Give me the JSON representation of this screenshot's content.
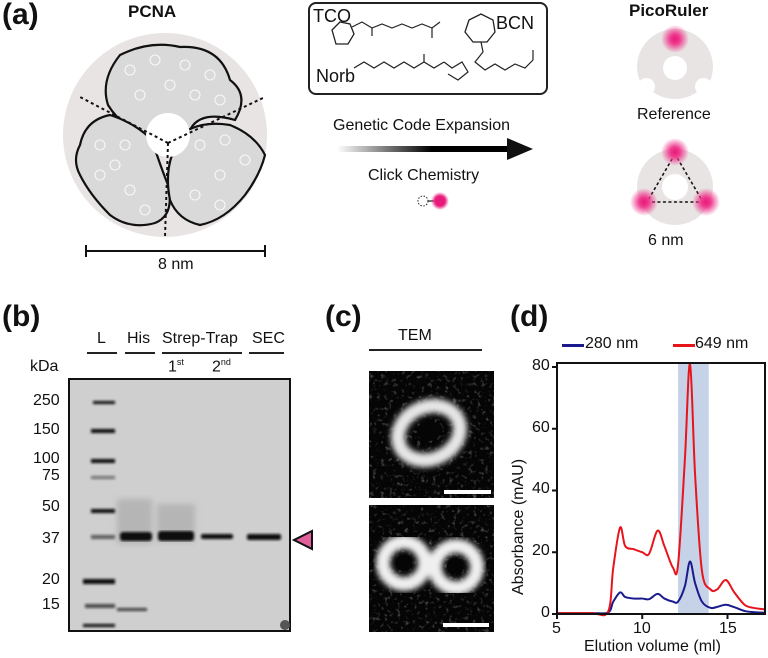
{
  "panel_a": {
    "label": "(a)",
    "pcna": {
      "title": "PCNA",
      "scale_label": "8 nm"
    },
    "chem_box": {
      "molecules": [
        "TCO",
        "BCN",
        "Norb"
      ]
    },
    "arrow_top_label": "Genetic Code Expansion",
    "arrow_bottom_label": "Click Chemistry",
    "picoruler": {
      "title": "PicoRuler",
      "reference_label": "Reference",
      "ruler_label": "6 nm"
    },
    "colors": {
      "ring": "#e8e4e3",
      "fluorophore": "#e8197a"
    }
  },
  "panel_b": {
    "label": "(b)",
    "unit_label": "kDa",
    "lanes": [
      "L",
      "His",
      "Strep-Trap",
      "SEC"
    ],
    "sublanes": [
      {
        "base": "1",
        "sup": "st"
      },
      {
        "base": "2",
        "sup": "nd"
      }
    ],
    "markers": [
      "250",
      "150",
      "100",
      "75",
      "50",
      "37",
      "20",
      "15"
    ],
    "arrow_color": "#e0609a"
  },
  "panel_c": {
    "label": "(c)",
    "title": "TEM"
  },
  "panel_d": {
    "label": "(d)",
    "legend": [
      {
        "name": "280 nm",
        "color": "#1a1a8c"
      },
      {
        "name": "649 nm",
        "color": "#e8141c"
      }
    ],
    "ylabel": "Absorbance (mAU)",
    "xlabel": "Elution volume (ml)",
    "yticks": [
      "0",
      "20",
      "40",
      "60",
      "80"
    ],
    "xticks": [
      "5",
      "10",
      "15"
    ]
  },
  "chart_data": {
    "type": "line",
    "title": "",
    "xlabel": "Elution volume (ml)",
    "ylabel": "Absorbance (mAU)",
    "xlim": [
      5,
      17.2
    ],
    "ylim": [
      0,
      82
    ],
    "grid": false,
    "legend_position": "top",
    "highlight_band": [
      12.1,
      13.9
    ],
    "x": [
      5,
      7,
      8,
      8.3,
      8.7,
      9.0,
      9.5,
      10.0,
      10.4,
      10.9,
      11.3,
      11.8,
      12.1,
      12.5,
      12.8,
      13.1,
      13.5,
      14.0,
      14.4,
      14.9,
      15.4,
      16.0,
      16.5,
      17.2
    ],
    "series": [
      {
        "name": "280 nm",
        "color": "#1a1a8c",
        "values": [
          0.3,
          0.3,
          0.5,
          4,
          7,
          5.5,
          5,
          5,
          4.8,
          6.5,
          5,
          4,
          4,
          9,
          17,
          10,
          4,
          2,
          2.3,
          3,
          2.2,
          1,
          0.6,
          0.4
        ]
      },
      {
        "name": "649 nm",
        "color": "#e8141c",
        "values": [
          0.3,
          0.3,
          0.8,
          15,
          28,
          22,
          21,
          20,
          19.5,
          27,
          22,
          15,
          16,
          50,
          81,
          45,
          14,
          8,
          8,
          11,
          7,
          3,
          2,
          1.5
        ]
      }
    ]
  }
}
